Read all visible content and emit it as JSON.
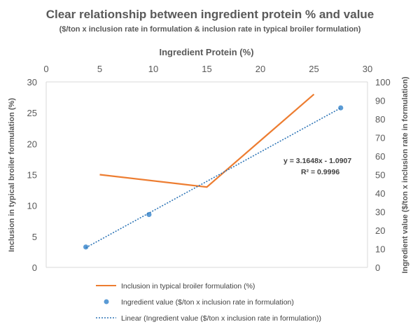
{
  "chart_data": {
    "type": "line",
    "title": "Clear relationship between ingredient protein % and value",
    "subtitle": "($/ton x inclusion rate in formulation & inclusion rate in typical broiler formulation)",
    "xlabel": "Ingredient Protein (%)",
    "ylabel_left": "Inclusion in typical broiler formulation (%)",
    "ylabel_right": "Ingredient value ($/ton x inclusion rate in formulation)",
    "xlim": [
      0,
      30
    ],
    "x_ticks": [
      "0",
      "5",
      "10",
      "15",
      "20",
      "25",
      "30"
    ],
    "ylim_left": [
      0,
      30
    ],
    "y_left_ticks": [
      "0",
      "5",
      "10",
      "15",
      "20",
      "25",
      "30"
    ],
    "ylim_right": [
      0,
      100
    ],
    "y_right_ticks": [
      "0",
      "10",
      "20",
      "30",
      "40",
      "50",
      "60",
      "70",
      "80",
      "90",
      "100"
    ],
    "grid": false,
    "legend_position": "bottom",
    "series": [
      {
        "name": "Inclusion in typical broiler formulation (%)",
        "kind": "line",
        "axis": "left",
        "color": "#ED7D31",
        "x": [
          5,
          15,
          25
        ],
        "y": [
          15,
          13,
          28
        ]
      },
      {
        "name": "Ingredient value ($/ton x inclusion rate in formulation)",
        "kind": "scatter",
        "axis": "right",
        "color": "#5B9BD5",
        "x": [
          3.7,
          9.6,
          27.5
        ],
        "y": [
          11,
          28.5,
          86
        ]
      },
      {
        "name": "Linear (Ingredient value ($/ton x inclusion rate in formulation))",
        "kind": "trendline",
        "axis": "right",
        "color": "#2E75B6",
        "slope": 3.1648,
        "intercept": -1.0907,
        "x_range": [
          3.7,
          27.5
        ]
      }
    ],
    "annotations": {
      "equation": "y = 3.1648x - 1.0907",
      "r_squared": "R² = 0.9996"
    }
  }
}
